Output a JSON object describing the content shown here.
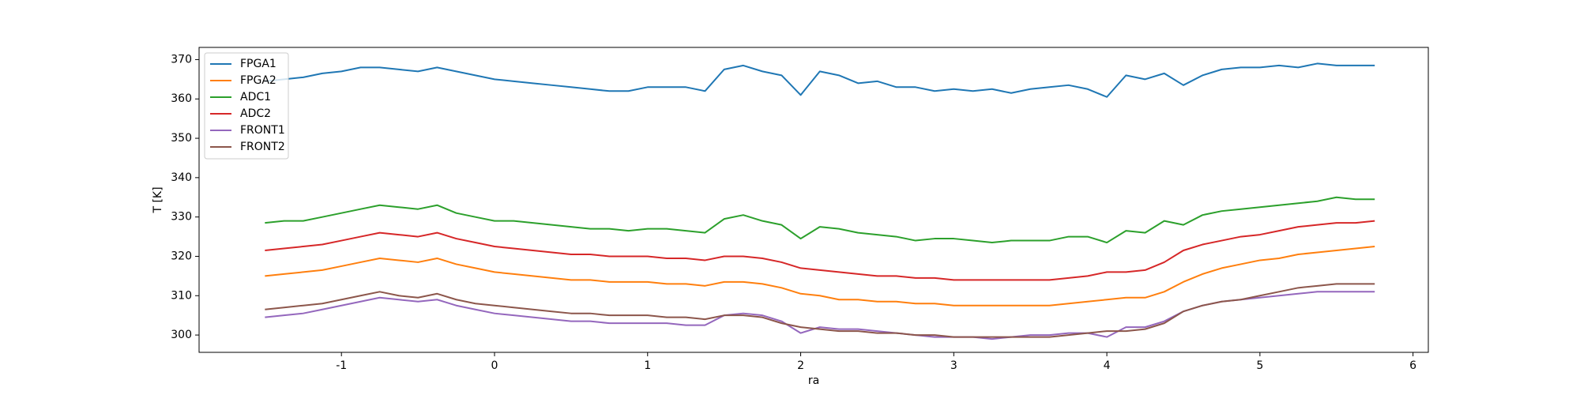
{
  "chart_data": {
    "type": "line",
    "xlabel": "ra",
    "ylabel": "T [K]",
    "x": [
      -1.5,
      -1.375,
      -1.25,
      -1.125,
      -1,
      -0.875,
      -0.75,
      -0.625,
      -0.5,
      -0.375,
      -0.25,
      -0.125,
      0,
      0.125,
      0.25,
      0.375,
      0.5,
      0.625,
      0.75,
      0.875,
      1,
      1.125,
      1.25,
      1.375,
      1.5,
      1.625,
      1.75,
      1.875,
      2,
      2.125,
      2.25,
      2.375,
      2.5,
      2.625,
      2.75,
      2.875,
      3,
      3.125,
      3.25,
      3.375,
      3.5,
      3.625,
      3.75,
      3.875,
      4,
      4.125,
      4.25,
      4.375,
      4.5,
      4.625,
      4.75,
      4.875,
      5,
      5.125,
      5.25,
      5.375,
      5.5,
      5.625,
      5.75
    ],
    "series": [
      {
        "name": "FPGA1",
        "color": "#1f77b4",
        "values": [
          364.5,
          365,
          365.5,
          366.5,
          367,
          368,
          368,
          367.5,
          367,
          368,
          367,
          366,
          365,
          364.5,
          364,
          363.5,
          363,
          362.5,
          362,
          362,
          363,
          363,
          363,
          362,
          367.5,
          368.5,
          367,
          366,
          361,
          367,
          366,
          364,
          364.5,
          363,
          363,
          362,
          362.5,
          362,
          362.5,
          361.5,
          362.5,
          363,
          363.5,
          362.5,
          360.5,
          366,
          365,
          366.5,
          363.5,
          366,
          367.5,
          368,
          368,
          368.5,
          368,
          369,
          368.5,
          368.5,
          368.5
        ]
      },
      {
        "name": "FPGA2",
        "color": "#ff7f0e",
        "values": [
          315,
          315.5,
          316,
          316.5,
          317.5,
          318.5,
          319.5,
          319,
          318.5,
          319.5,
          318,
          317,
          316,
          315.5,
          315,
          314.5,
          314,
          314,
          313.5,
          313.5,
          313.5,
          313,
          313,
          312.5,
          313.5,
          313.5,
          313,
          312,
          310.5,
          310,
          309,
          309,
          308.5,
          308.5,
          308,
          308,
          307.5,
          307.5,
          307.5,
          307.5,
          307.5,
          307.5,
          308,
          308.5,
          309,
          309.5,
          309.5,
          311,
          313.5,
          315.5,
          317,
          318,
          319,
          319.5,
          320.5,
          321,
          321.5,
          322,
          322.5
        ]
      },
      {
        "name": "ADC1",
        "color": "#2ca02c",
        "values": [
          328.5,
          329,
          329,
          330,
          331,
          332,
          333,
          332.5,
          332,
          333,
          331,
          330,
          329,
          329,
          328.5,
          328,
          327.5,
          327,
          327,
          326.5,
          327,
          327,
          326.5,
          326,
          329.5,
          330.5,
          329,
          328,
          324.5,
          327.5,
          327,
          326,
          325.5,
          325,
          324,
          324.5,
          324.5,
          324,
          323.5,
          324,
          324,
          324,
          325,
          325,
          323.5,
          326.5,
          326,
          329,
          328,
          330.5,
          331.5,
          332,
          332.5,
          333,
          333.5,
          334,
          335,
          334.5,
          334.5
        ]
      },
      {
        "name": "ADC2",
        "color": "#d62728",
        "values": [
          321.5,
          322,
          322.5,
          323,
          324,
          325,
          326,
          325.5,
          325,
          326,
          324.5,
          323.5,
          322.5,
          322,
          321.5,
          321,
          320.5,
          320.5,
          320,
          320,
          320,
          319.5,
          319.5,
          319,
          320,
          320,
          319.5,
          318.5,
          317,
          316.5,
          316,
          315.5,
          315,
          315,
          314.5,
          314.5,
          314,
          314,
          314,
          314,
          314,
          314,
          314.5,
          315,
          316,
          316,
          316.5,
          318.5,
          321.5,
          323,
          324,
          325,
          325.5,
          326.5,
          327.5,
          328,
          328.5,
          328.5,
          329
        ]
      },
      {
        "name": "FRONT1",
        "color": "#9467bd",
        "values": [
          304.5,
          305,
          305.5,
          306.5,
          307.5,
          308.5,
          309.5,
          309,
          308.5,
          309,
          307.5,
          306.5,
          305.5,
          305,
          304.5,
          304,
          303.5,
          303.5,
          303,
          303,
          303,
          303,
          302.5,
          302.5,
          305,
          305.5,
          305,
          303.5,
          300.5,
          302,
          301.5,
          301.5,
          301,
          300.5,
          300,
          299.5,
          299.5,
          299.5,
          299,
          299.5,
          300,
          300,
          300.5,
          300.5,
          299.5,
          302,
          302,
          303.5,
          306,
          307.5,
          308.5,
          309,
          309.5,
          310,
          310.5,
          311,
          311,
          311,
          311
        ]
      },
      {
        "name": "FRONT2",
        "color": "#8c564b",
        "values": [
          306.5,
          307,
          307.5,
          308,
          309,
          310,
          311,
          310,
          309.5,
          310.5,
          309,
          308,
          307.5,
          307,
          306.5,
          306,
          305.5,
          305.5,
          305,
          305,
          305,
          304.5,
          304.5,
          304,
          305,
          305,
          304.5,
          303,
          302,
          301.5,
          301,
          301,
          300.5,
          300.5,
          300,
          300,
          299.5,
          299.5,
          299.5,
          299.5,
          299.5,
          299.5,
          300,
          300.5,
          301,
          301,
          301.5,
          303,
          306,
          307.5,
          308.5,
          309,
          310,
          311,
          312,
          312.5,
          313,
          313,
          313
        ]
      }
    ],
    "xlim": [
      -1.93,
      6.1
    ],
    "ylim": [
      295.6,
      373.1
    ],
    "xticks": [
      -1,
      0,
      1,
      2,
      3,
      4,
      5,
      6
    ],
    "yticks": [
      300,
      310,
      320,
      330,
      340,
      350,
      360,
      370
    ],
    "legend": "upper left",
    "grid": false
  }
}
